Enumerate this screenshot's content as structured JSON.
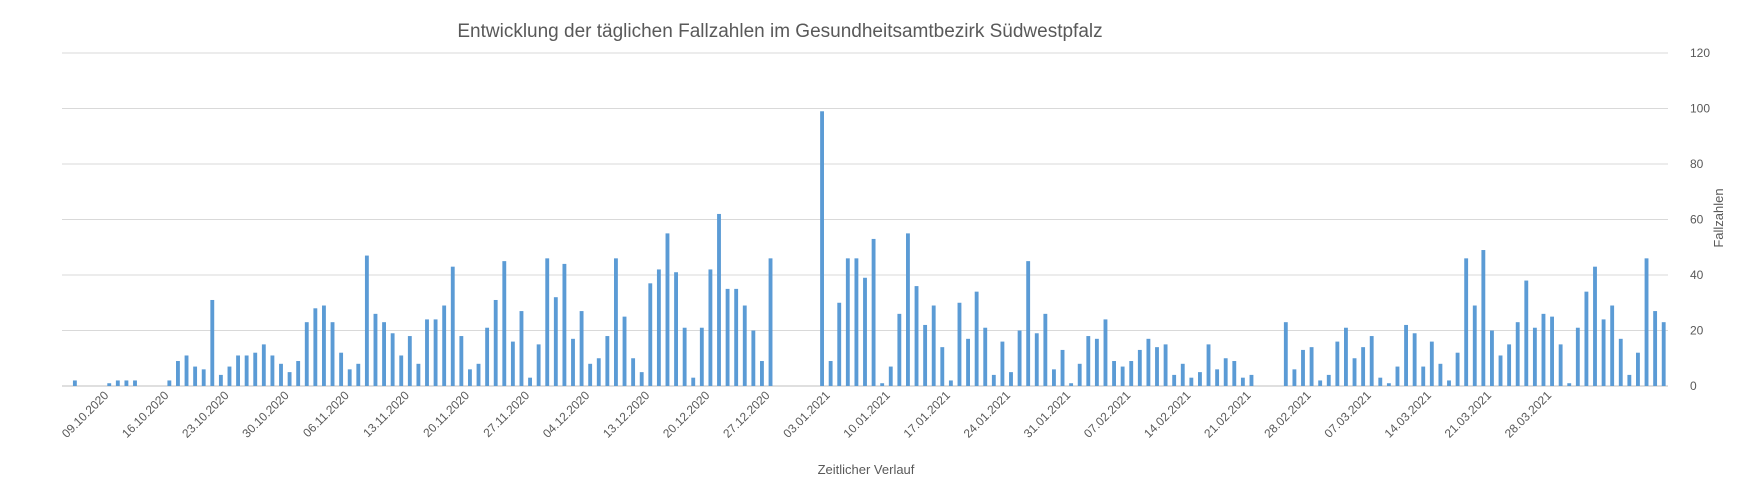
{
  "chart_data": {
    "type": "bar",
    "title": "Entwicklung der täglichen Fallzahlen im Gesundheitsamtbezirk Südwestpfalz",
    "xlabel": "Zeitlicher Verlauf",
    "ylabel": "Fallzahlen",
    "ylim": [
      0,
      120
    ],
    "yticks": [
      0,
      20,
      40,
      60,
      80,
      100,
      120
    ],
    "y_axis_side": "right",
    "grid": true,
    "legend": "none",
    "bar_color": "#5b9bd5",
    "x_tick_labels": [
      "09.10.2020",
      "16.10.2020",
      "23.10.2020",
      "30.10.2020",
      "06.11.2020",
      "13.11.2020",
      "20.11.2020",
      "27.11.2020",
      "04.12.2020",
      "13.12.2020",
      "20.12.2020",
      "27.12.2020",
      "03.01.2021",
      "10.01.2021",
      "17.01.2021",
      "24.01.2021",
      "31.01.2021",
      "07.02.2021",
      "14.02.2021",
      "21.02.2021",
      "28.02.2021",
      "07.03.2021",
      "14.03.2021",
      "21.03.2021",
      "28.03.2021"
    ],
    "x_tick_indices": [
      5,
      12,
      19,
      26,
      33,
      40,
      47,
      54,
      61,
      68,
      75,
      82,
      89,
      96,
      103,
      110,
      117,
      124,
      131,
      138,
      145,
      152,
      159,
      166,
      173
    ],
    "values": [
      0,
      2,
      0,
      0,
      0,
      1,
      2,
      2,
      2,
      0,
      0,
      0,
      2,
      9,
      11,
      7,
      6,
      31,
      4,
      7,
      11,
      11,
      12,
      15,
      11,
      8,
      5,
      9,
      23,
      28,
      29,
      23,
      12,
      6,
      8,
      47,
      26,
      23,
      19,
      11,
      18,
      8,
      24,
      24,
      29,
      43,
      18,
      6,
      8,
      21,
      31,
      45,
      16,
      27,
      3,
      15,
      46,
      32,
      44,
      17,
      27,
      8,
      10,
      18,
      46,
      25,
      10,
      5,
      37,
      42,
      55,
      41,
      21,
      3,
      21,
      42,
      62,
      35,
      35,
      29,
      20,
      9,
      46,
      0,
      0,
      0,
      0,
      0,
      99,
      9,
      30,
      46,
      46,
      39,
      53,
      1,
      7,
      26,
      55,
      36,
      22,
      29,
      14,
      2,
      30,
      17,
      34,
      21,
      4,
      16,
      5,
      20,
      45,
      19,
      26,
      6,
      13,
      1,
      8,
      18,
      17,
      24,
      9,
      7,
      9,
      13,
      17,
      14,
      15,
      4,
      8,
      3,
      5,
      15,
      6,
      10,
      9,
      3,
      4,
      0,
      0,
      0,
      23,
      6,
      13,
      14,
      2,
      4,
      16,
      21,
      10,
      14,
      18,
      3,
      1,
      7,
      22,
      19,
      7,
      16,
      8,
      2,
      12,
      46,
      29,
      49,
      20,
      11,
      15,
      23,
      38,
      21,
      26,
      25,
      15,
      1,
      21,
      34,
      43,
      24,
      29,
      17,
      4,
      12,
      46,
      27,
      23
    ]
  }
}
